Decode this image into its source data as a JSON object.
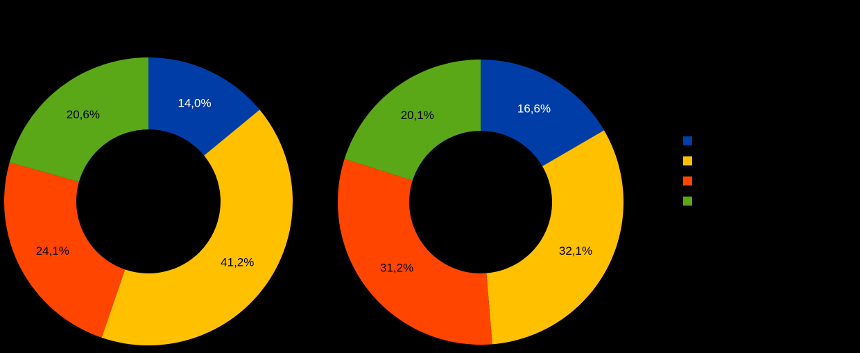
{
  "background": "#000000",
  "palette": [
    "#003DA6",
    "#FFC000",
    "#FF4500",
    "#5AA818"
  ],
  "label_colors": [
    "#FFFFFF",
    "#000000",
    "#000000",
    "#000000"
  ],
  "chart_data": [
    {
      "type": "pie",
      "subtype": "donut",
      "title": "",
      "start_angle_deg": 0,
      "direction": "clockwise",
      "values": [
        14.0,
        41.2,
        24.1,
        20.6
      ],
      "labels": [
        "14,0%",
        "41,2%",
        "24,1%",
        "20,6%"
      ]
    },
    {
      "type": "pie",
      "subtype": "donut",
      "title": "",
      "start_angle_deg": 0,
      "direction": "clockwise",
      "values": [
        16.6,
        32.1,
        31.2,
        20.1
      ],
      "labels": [
        "16,6%",
        "32,1%",
        "31,2%",
        "20,1%"
      ]
    }
  ],
  "legend": {
    "position": "right",
    "items": [
      {
        "color": "#003DA6"
      },
      {
        "color": "#FFC000"
      },
      {
        "color": "#FF4500"
      },
      {
        "color": "#5AA818"
      }
    ]
  }
}
